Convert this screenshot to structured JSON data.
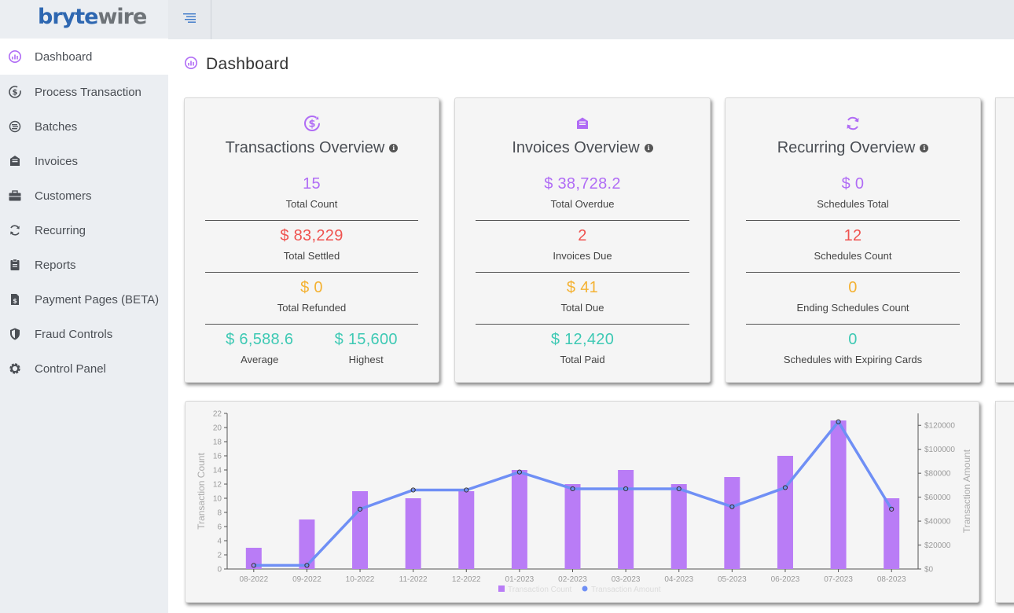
{
  "brand": {
    "part1": "bryte",
    "part2": "wire"
  },
  "sidebar": {
    "items": [
      {
        "label": "Dashboard",
        "icon": "dashboard-icon",
        "active": true
      },
      {
        "label": "Process Transaction",
        "icon": "dollar-cycle-icon"
      },
      {
        "label": "Batches",
        "icon": "batches-icon"
      },
      {
        "label": "Invoices",
        "icon": "invoice-icon"
      },
      {
        "label": "Customers",
        "icon": "briefcase-icon"
      },
      {
        "label": "Recurring",
        "icon": "recurring-icon"
      },
      {
        "label": "Reports",
        "icon": "clipboard-icon"
      },
      {
        "label": "Payment Pages (BETA)",
        "icon": "file-dollar-icon"
      },
      {
        "label": "Fraud Controls",
        "icon": "shield-icon"
      },
      {
        "label": "Control Panel",
        "icon": "gear-icon"
      }
    ]
  },
  "page": {
    "title": "Dashboard"
  },
  "colors": {
    "accent": "#b06cf5",
    "red": "#ef5350",
    "orange": "#f4b233",
    "teal": "#3ec9b4",
    "line": "#6f8ff5"
  },
  "transactions": {
    "title": "Transactions Overview",
    "total_count": "15",
    "total_count_label": "Total Count",
    "total_settled": "$ 83,229",
    "total_settled_label": "Total Settled",
    "total_refunded": "$ 0",
    "total_refunded_label": "Total Refunded",
    "average": "$ 6,588.6",
    "average_label": "Average",
    "highest": "$ 15,600",
    "highest_label": "Highest"
  },
  "invoices": {
    "title": "Invoices Overview",
    "total_overdue": "$ 38,728.2",
    "total_overdue_label": "Total Overdue",
    "invoices_due": "2",
    "invoices_due_label": "Invoices Due",
    "total_due": "$ 41",
    "total_due_label": "Total Due",
    "total_paid": "$ 12,420",
    "total_paid_label": "Total Paid"
  },
  "recurring": {
    "title": "Recurring Overview",
    "schedules_total": "$ 0",
    "schedules_total_label": "Schedules Total",
    "schedules_count": "12",
    "schedules_count_label": "Schedules Count",
    "ending_count": "0",
    "ending_count_label": "Ending Schedules Count",
    "expiring": "0",
    "expiring_label": "Schedules with Expiring Cards"
  },
  "chart_data": {
    "type": "bar",
    "categories": [
      "08-2022",
      "09-2022",
      "10-2022",
      "11-2022",
      "12-2022",
      "01-2023",
      "02-2023",
      "03-2023",
      "04-2023",
      "05-2023",
      "06-2023",
      "07-2023",
      "08-2023"
    ],
    "series": [
      {
        "name": "Transaction Count",
        "type": "bar",
        "axis": "left",
        "color": "#b97cf6",
        "values": [
          3,
          7,
          11,
          10,
          11,
          14,
          12,
          14,
          12,
          13,
          16,
          21,
          10
        ]
      },
      {
        "name": "Transaction Amount",
        "type": "line",
        "axis": "right",
        "color": "#6f8ff5",
        "values": [
          3000,
          3000,
          50000,
          66000,
          66000,
          81000,
          67000,
          67000,
          67000,
          52000,
          68000,
          123000,
          50000
        ]
      }
    ],
    "ylabel": "Transaction Count",
    "y2label": "Transaction Amount",
    "ylim": [
      0,
      22
    ],
    "y2lim": [
      0,
      130000
    ],
    "yticks": [
      "0",
      "2",
      "4",
      "6",
      "8",
      "10",
      "12",
      "14",
      "16",
      "18",
      "20",
      "22"
    ],
    "y2ticks": [
      "$0",
      "$20000",
      "$40000",
      "$60000",
      "$80000",
      "$100000",
      "$120000"
    ],
    "legend": "bottom",
    "grid": false
  }
}
